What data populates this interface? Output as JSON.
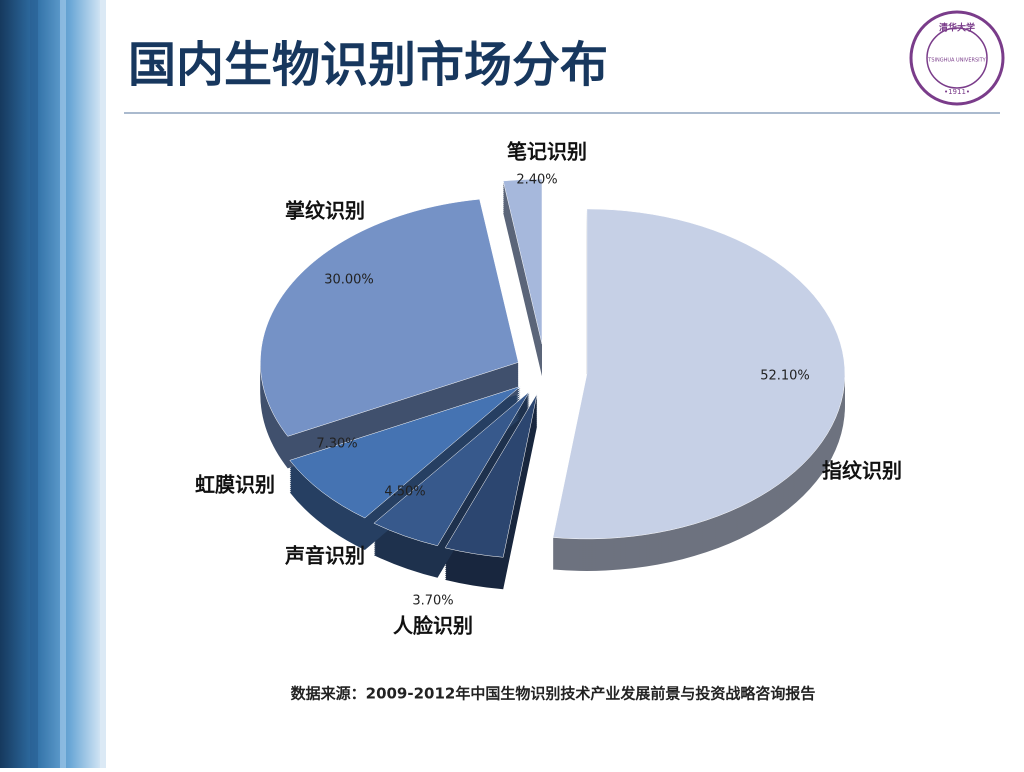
{
  "chart_data": {
    "type": "pie",
    "title": "国内生物识别市场分布",
    "categories": [
      "指纹识别",
      "人脸识别",
      "声音识别",
      "虹膜识别",
      "掌纹识别",
      "笔记识别"
    ],
    "values": [
      52.1,
      3.7,
      4.5,
      7.3,
      30.0,
      2.4
    ],
    "value_labels": [
      "52.10%",
      "3.70%",
      "4.50%",
      "7.30%",
      "30.00%",
      "2.40%"
    ],
    "colors": [
      "#c6d0e6",
      "#2c4670",
      "#37598c",
      "#4573b2",
      "#7592c6",
      "#a6b8dc"
    ],
    "source": "数据来源：2009-2012年中国生物识别技术产业发展前景与投资战略咨询报告"
  },
  "logo": {
    "name": "清华大学",
    "english": "TSINGHUA UNIVERSITY",
    "year": "•1911•"
  }
}
